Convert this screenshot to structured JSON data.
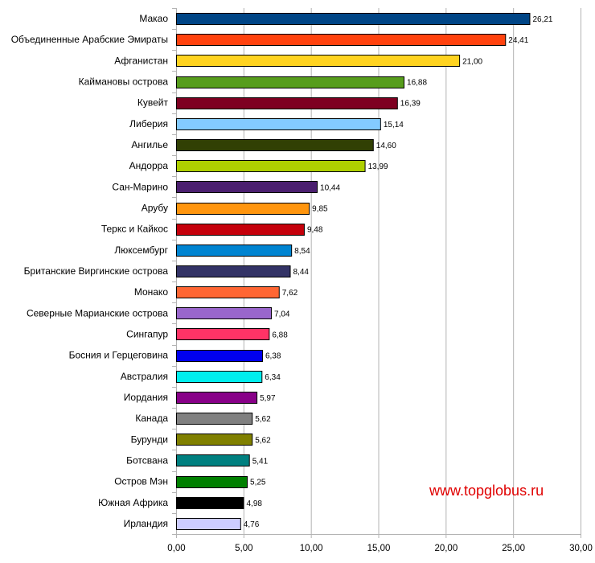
{
  "chart_data": {
    "type": "bar",
    "orientation": "horizontal",
    "categories": [
      "Макао",
      "Объединенные Арабские Эмираты",
      "Афганистан",
      "Каймановы острова",
      "Кувейт",
      "Либерия",
      "Ангилье",
      "Андорра",
      "Сан-Марино",
      "Арубу",
      "Теркс и Кайкос",
      "Люксембург",
      "Британские Виргинские острова",
      "Монако",
      "Северные Марианские острова",
      "Сингапур",
      "Босния и Герцеговина",
      "Австралия",
      "Иордания",
      "Канада",
      "Бурунди",
      "Ботсвана",
      "Остров Мэн",
      "Южная Африка",
      "Ирландия"
    ],
    "values": [
      26.21,
      24.41,
      21.0,
      16.88,
      16.39,
      15.14,
      14.6,
      13.99,
      10.44,
      9.85,
      9.48,
      8.54,
      8.44,
      7.62,
      7.04,
      6.88,
      6.38,
      6.34,
      5.97,
      5.62,
      5.62,
      5.41,
      5.25,
      4.98,
      4.76
    ],
    "value_labels": [
      "26,21",
      "24,41",
      "21,00",
      "16,88",
      "16,39",
      "15,14",
      "14,60",
      "13,99",
      "10,44",
      "9,85",
      "9,48",
      "8,54",
      "8,44",
      "7,62",
      "7,04",
      "6,88",
      "6,38",
      "6,34",
      "5,97",
      "5,62",
      "5,62",
      "5,41",
      "5,25",
      "4,98",
      "4,76"
    ],
    "colors": [
      "#004586",
      "#ff420e",
      "#ffd320",
      "#579d1c",
      "#7e0021",
      "#83caff",
      "#314004",
      "#aecf00",
      "#4b1f6f",
      "#ff950e",
      "#c5000b",
      "#0084d1",
      "#333366",
      "#ff6633",
      "#9966cc",
      "#ff3366",
      "#0000ee",
      "#00eeee",
      "#880088",
      "#808080",
      "#808000",
      "#008080",
      "#008000",
      "#000000",
      "#ccccff"
    ],
    "xlim": [
      0,
      30
    ],
    "x_ticks": [
      0,
      5,
      10,
      15,
      20,
      25,
      30
    ],
    "x_tick_labels": [
      "0,00",
      "5,00",
      "10,00",
      "15,00",
      "20,00",
      "25,00",
      "30,00"
    ],
    "grid": "vertical",
    "title": "",
    "xlabel": "",
    "ylabel": ""
  },
  "watermark": "www.topglobus.ru"
}
